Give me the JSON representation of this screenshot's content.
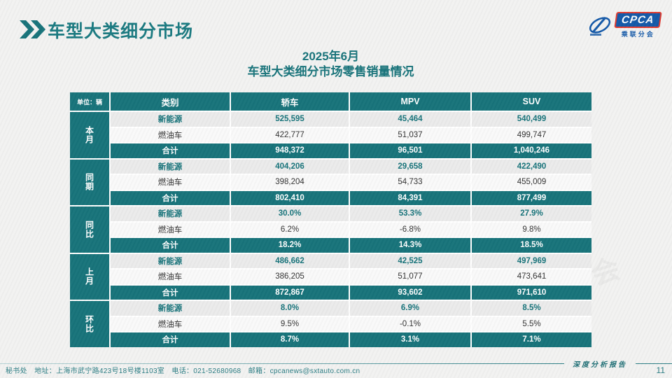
{
  "header": {
    "title": "车型大类细分市场"
  },
  "logo": {
    "acronym": "CPCA",
    "chinese": "乘联分会"
  },
  "subtitle": {
    "line1": "2025年6月",
    "line2": "车型大类细分市场零售销量情况"
  },
  "table": {
    "unit_label": "单位：辆",
    "columns": [
      "类别",
      "轿车",
      "MPV",
      "SUV"
    ],
    "groups": [
      {
        "label": "本月",
        "rows": [
          {
            "category": "新能源",
            "style": "ne",
            "values": [
              "525,595",
              "45,464",
              "540,499"
            ]
          },
          {
            "category": "燃油车",
            "style": "fuel",
            "values": [
              "422,777",
              "51,037",
              "499,747"
            ]
          },
          {
            "category": "合计",
            "style": "total",
            "values": [
              "948,372",
              "96,501",
              "1,040,246"
            ]
          }
        ]
      },
      {
        "label": "同期",
        "rows": [
          {
            "category": "新能源",
            "style": "ne",
            "values": [
              "404,206",
              "29,658",
              "422,490"
            ]
          },
          {
            "category": "燃油车",
            "style": "fuel",
            "values": [
              "398,204",
              "54,733",
              "455,009"
            ]
          },
          {
            "category": "合计",
            "style": "total",
            "values": [
              "802,410",
              "84,391",
              "877,499"
            ]
          }
        ]
      },
      {
        "label": "同比",
        "rows": [
          {
            "category": "新能源",
            "style": "ne",
            "values": [
              "30.0%",
              "53.3%",
              "27.9%"
            ]
          },
          {
            "category": "燃油车",
            "style": "fuel",
            "values": [
              "6.2%",
              "-6.8%",
              "9.8%"
            ]
          },
          {
            "category": "合计",
            "style": "total",
            "values": [
              "18.2%",
              "14.3%",
              "18.5%"
            ]
          }
        ]
      },
      {
        "label": "上月",
        "rows": [
          {
            "category": "新能源",
            "style": "ne",
            "values": [
              "486,662",
              "42,525",
              "497,969"
            ]
          },
          {
            "category": "燃油车",
            "style": "fuel",
            "values": [
              "386,205",
              "51,077",
              "473,641"
            ]
          },
          {
            "category": "合计",
            "style": "total",
            "values": [
              "872,867",
              "93,602",
              "971,610"
            ]
          }
        ]
      },
      {
        "label": "环比",
        "rows": [
          {
            "category": "新能源",
            "style": "ne",
            "values": [
              "8.0%",
              "6.9%",
              "8.5%"
            ]
          },
          {
            "category": "燃油车",
            "style": "fuel",
            "values": [
              "9.5%",
              "-0.1%",
              "5.5%"
            ]
          },
          {
            "category": "合计",
            "style": "total",
            "values": [
              "8.7%",
              "3.1%",
              "7.1%"
            ]
          }
        ]
      }
    ]
  },
  "footer": {
    "contact": "秘书处　地址：上海市武宁路423号18号楼1103室　电话：021-52680968　邮箱：cpcanews@sxtauto.com.cn",
    "report_label": "深度分析报告",
    "page_number": "11"
  },
  "watermark": "CPCA 乘联分会",
  "colors": {
    "table_teal": "#17737A",
    "title_teal": "#1B7A81",
    "logo_blue": "#1459A8",
    "logo_red": "#E03A2F",
    "footer_teal": "#2B7D84"
  }
}
